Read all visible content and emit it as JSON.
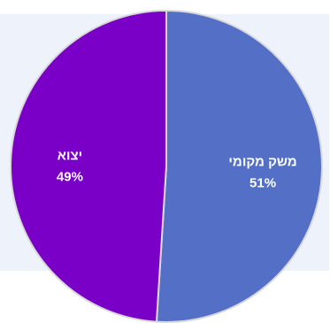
{
  "chart_data": {
    "type": "pie",
    "title": "",
    "slices": [
      {
        "label": "משק מקומי",
        "value": 51,
        "value_label": "51%",
        "color": "#5470c6"
      },
      {
        "label": "יצוא",
        "value": 49,
        "value_label": "49%",
        "color": "#7a00c8"
      }
    ],
    "start_angle_deg": 0,
    "direction": "clockwise",
    "legend": "none",
    "border_color": "#d9d9d9"
  }
}
